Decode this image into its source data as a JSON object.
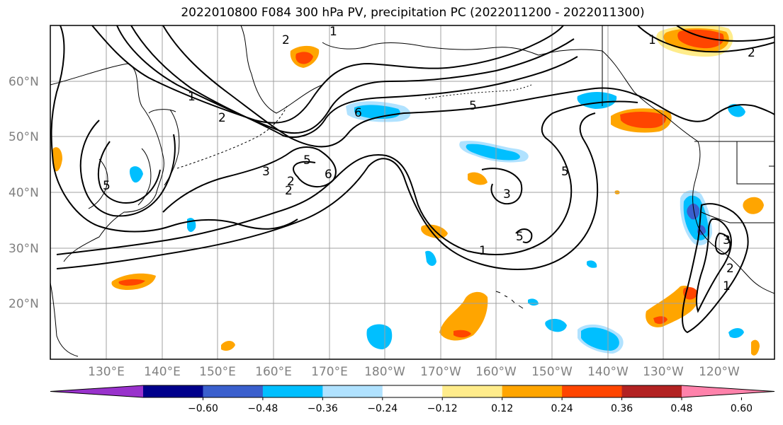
{
  "title": "2022010800 F084 300 hPa PV, precipitation PC (2022011200 - 2022011300)",
  "map": {
    "lat_labels": [
      "60°N",
      "50°N",
      "40°N",
      "30°N",
      "20°N"
    ],
    "lon_labels": [
      "130°E",
      "140°E",
      "150°E",
      "160°E",
      "170°E",
      "180°W",
      "170°W",
      "160°W",
      "150°W",
      "140°W",
      "130°W",
      "120°W"
    ],
    "contour_levels": [
      "1",
      "2",
      "3",
      "5",
      "6"
    ]
  },
  "colorbar": {
    "tick_labels": [
      "−0.60",
      "−0.48",
      "−0.36",
      "−0.24",
      "−0.12",
      "0.12",
      "0.24",
      "0.36",
      "0.48",
      "0.60"
    ],
    "colors": [
      "#9932cc",
      "#00008b",
      "#3a5fcd",
      "#00bfff",
      "#b0e2ff",
      "#ffffff",
      "#ffec8b",
      "#ffa500",
      "#ff4500",
      "#b22222",
      "#ff82ab"
    ]
  },
  "colors": {
    "frame": "#000000",
    "grid": "#a0a0a0",
    "contour": "#000000",
    "coast": "#000000",
    "axis_label": "#808080"
  }
}
